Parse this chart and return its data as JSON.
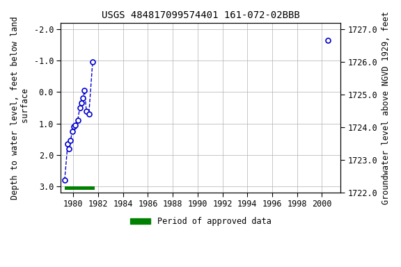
{
  "title": "USGS 484817099574401 161-072-02BBB",
  "ylabel_left": "Depth to water level, feet below land\n surface",
  "ylabel_right": "Groundwater level above NGVD 1929, feet",
  "xlim": [
    1979.0,
    2001.5
  ],
  "ylim_left": [
    3.2,
    -2.2
  ],
  "ylim_right": [
    1722.0,
    1727.2
  ],
  "xticks": [
    1980,
    1982,
    1984,
    1986,
    1988,
    1990,
    1992,
    1994,
    1996,
    1998,
    2000
  ],
  "yticks_left": [
    -2.0,
    -1.0,
    0.0,
    1.0,
    2.0,
    3.0
  ],
  "yticks_right": [
    1722.0,
    1723.0,
    1724.0,
    1725.0,
    1726.0,
    1727.0
  ],
  "cluster_x": [
    1979.3,
    1979.55,
    1979.65,
    1979.78,
    1979.9,
    1980.05,
    1980.15,
    1980.35,
    1980.52,
    1980.65,
    1980.78,
    1980.9,
    1981.05,
    1981.25,
    1981.55
  ],
  "cluster_y": [
    2.8,
    1.65,
    1.8,
    1.55,
    1.25,
    1.1,
    1.05,
    0.9,
    0.5,
    0.35,
    0.2,
    -0.05,
    0.6,
    0.7,
    -0.95
  ],
  "isolated_x": [
    2000.5
  ],
  "isolated_y": [
    -1.65
  ],
  "approved_bar_x_start": 1979.3,
  "approved_bar_x_end": 1981.7,
  "approved_bar_y": 3.05,
  "approved_bar_height": 0.1,
  "line_color": "#0000cc",
  "marker_color": "#0000cc",
  "bar_color": "#008000",
  "bg_color": "#ffffff",
  "grid_color": "#b0b0b0",
  "title_fontsize": 10,
  "label_fontsize": 8.5,
  "tick_fontsize": 8.5
}
